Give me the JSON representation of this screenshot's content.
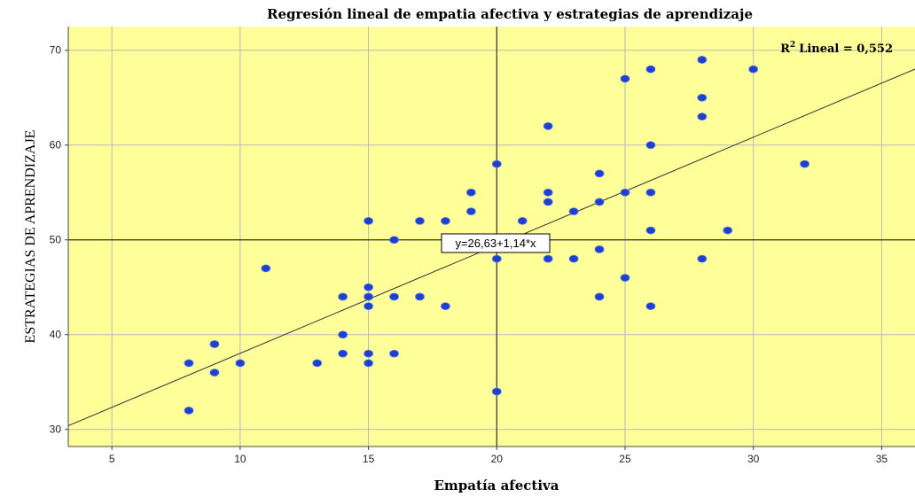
{
  "chart_data": {
    "type": "scatter",
    "title": "Regresión lineal de empatia afectiva y estrategias de aprendizaje",
    "xlabel": "Empatía afectiva",
    "ylabel": "ESTRATEGIAS DE APRENDIZAJE",
    "xlim": [
      3.3,
      36.3
    ],
    "ylim": [
      28.2,
      72.5
    ],
    "xticks": [
      5,
      10,
      15,
      20,
      25,
      30,
      35
    ],
    "yticks": [
      30,
      40,
      50,
      60,
      70
    ],
    "grid": true,
    "plot_background": "#ffff99",
    "point_color": "#1f3fd1",
    "reference_lines": {
      "x": 20,
      "y": 50
    },
    "regression": {
      "intercept": 26.63,
      "slope": 1.14,
      "equation_label": "y=26,63+1,14*x",
      "r2_label": "Lineal = 0,552",
      "r2_symbol": "R²"
    },
    "points": [
      [
        8,
        37
      ],
      [
        8,
        32
      ],
      [
        9,
        39
      ],
      [
        9,
        36
      ],
      [
        10,
        37
      ],
      [
        11,
        47
      ],
      [
        13,
        37
      ],
      [
        14,
        44
      ],
      [
        14,
        40
      ],
      [
        14,
        38
      ],
      [
        15,
        52
      ],
      [
        15,
        45
      ],
      [
        15,
        44
      ],
      [
        15,
        43
      ],
      [
        15,
        38
      ],
      [
        15,
        37
      ],
      [
        16,
        50
      ],
      [
        16,
        44
      ],
      [
        16,
        38
      ],
      [
        17,
        52
      ],
      [
        17,
        44
      ],
      [
        18,
        52
      ],
      [
        18,
        43
      ],
      [
        19,
        55
      ],
      [
        19,
        53
      ],
      [
        20,
        58
      ],
      [
        20,
        48
      ],
      [
        20,
        34
      ],
      [
        21,
        52
      ],
      [
        22,
        62
      ],
      [
        22,
        55
      ],
      [
        22,
        54
      ],
      [
        22,
        48
      ],
      [
        23,
        53
      ],
      [
        23,
        48
      ],
      [
        24,
        57
      ],
      [
        24,
        54
      ],
      [
        24,
        49
      ],
      [
        24,
        44
      ],
      [
        25,
        67
      ],
      [
        25,
        55
      ],
      [
        25,
        46
      ],
      [
        26,
        68
      ],
      [
        26,
        60
      ],
      [
        26,
        55
      ],
      [
        26,
        51
      ],
      [
        26,
        43
      ],
      [
        28,
        69
      ],
      [
        28,
        65
      ],
      [
        28,
        63
      ],
      [
        28,
        48
      ],
      [
        29,
        51
      ],
      [
        30,
        68
      ],
      [
        32,
        58
      ]
    ]
  }
}
